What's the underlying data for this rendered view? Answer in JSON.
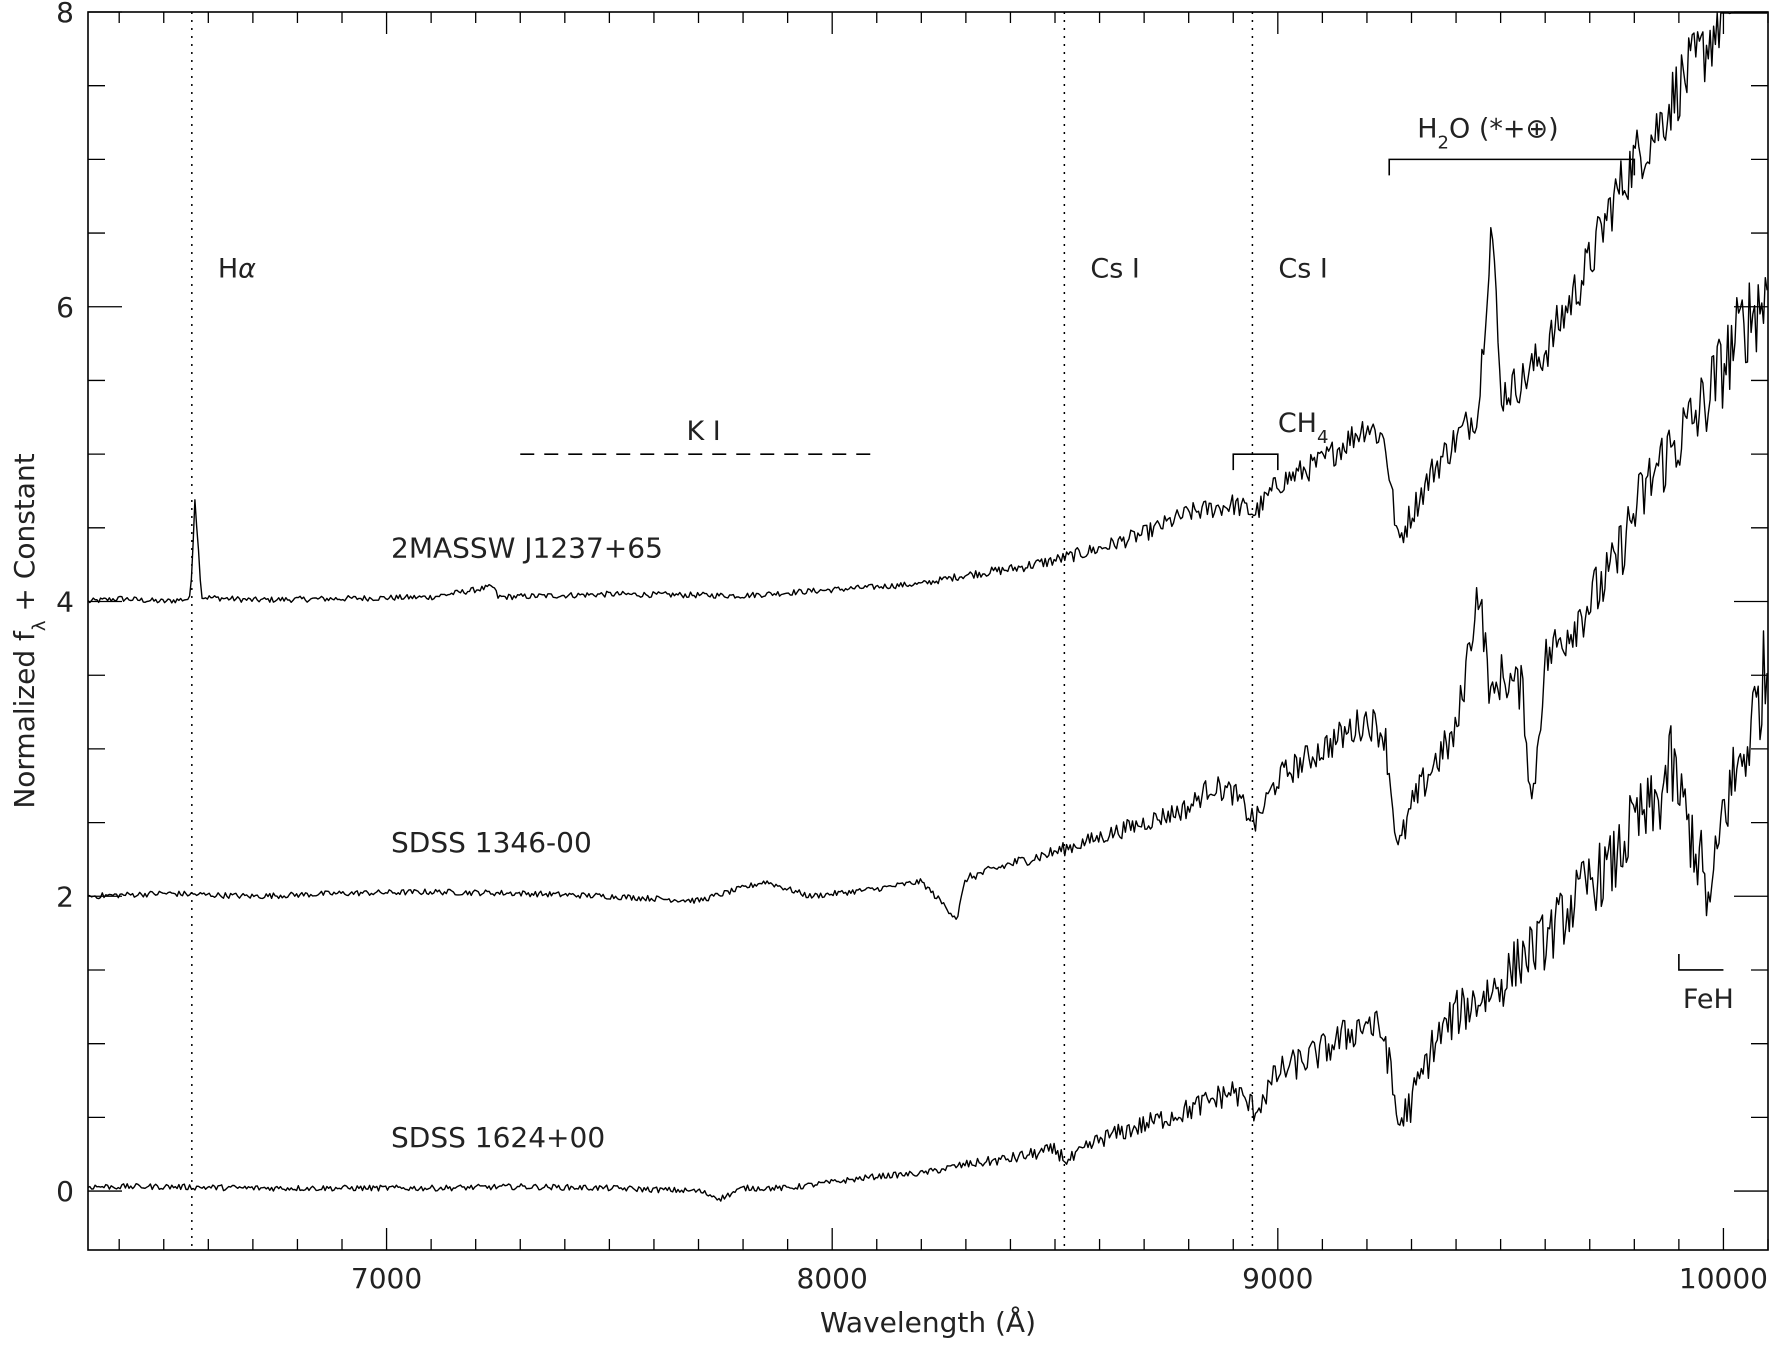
{
  "chart_data": {
    "type": "line",
    "title": "",
    "xlabel_main": "Wavelength (",
    "xlabel_unit": "Å",
    "xlabel_end": ")",
    "ylabel_main": "Normalized f",
    "ylabel_sub": "λ",
    "ylabel_end": " + Constant",
    "xlim": [
      6330,
      10100
    ],
    "ylim": [
      -0.4,
      8
    ],
    "x_ticks": [
      7000,
      8000,
      9000,
      10000
    ],
    "y_ticks": [
      0,
      2,
      4,
      6,
      8
    ],
    "grid": false,
    "series": [
      {
        "name": "2MASSW J1237+65",
        "offset": 4,
        "points": [
          [
            6330,
            0.0
          ],
          [
            6400,
            0.02
          ],
          [
            6500,
            0.0
          ],
          [
            6560,
            0.02
          ],
          [
            6570,
            0.7
          ],
          [
            6585,
            0.03
          ],
          [
            6700,
            0.01
          ],
          [
            6900,
            0.02
          ],
          [
            7100,
            0.03
          ],
          [
            7240,
            0.1
          ],
          [
            7250,
            0.03
          ],
          [
            7500,
            0.05
          ],
          [
            7800,
            0.04
          ],
          [
            8000,
            0.08
          ],
          [
            8200,
            0.12
          ],
          [
            8300,
            0.18
          ],
          [
            8400,
            0.22
          ],
          [
            8500,
            0.28
          ],
          [
            8600,
            0.36
          ],
          [
            8700,
            0.46
          ],
          [
            8800,
            0.6
          ],
          [
            8900,
            0.66
          ],
          [
            8950,
            0.6
          ],
          [
            9000,
            0.8
          ],
          [
            9100,
            0.95
          ],
          [
            9200,
            1.2
          ],
          [
            9240,
            1.1
          ],
          [
            9270,
            0.4
          ],
          [
            9300,
            0.6
          ],
          [
            9350,
            0.9
          ],
          [
            9400,
            1.1
          ],
          [
            9450,
            1.3
          ],
          [
            9480,
            2.6
          ],
          [
            9500,
            1.4
          ],
          [
            9550,
            1.5
          ],
          [
            9600,
            1.7
          ],
          [
            9650,
            2.0
          ],
          [
            9700,
            2.3
          ],
          [
            9750,
            2.7
          ],
          [
            9800,
            3.0
          ],
          [
            9850,
            3.2
          ],
          [
            9900,
            3.5
          ],
          [
            9950,
            3.7
          ],
          [
            10000,
            4.0
          ],
          [
            10050,
            4.3
          ],
          [
            10100,
            4.5
          ]
        ]
      },
      {
        "name": "SDSS 1346-00",
        "offset": 2,
        "points": [
          [
            6330,
            0.0
          ],
          [
            6500,
            0.02
          ],
          [
            6700,
            0.0
          ],
          [
            6900,
            0.02
          ],
          [
            7100,
            0.03
          ],
          [
            7300,
            0.02
          ],
          [
            7500,
            0.0
          ],
          [
            7700,
            -0.03
          ],
          [
            7850,
            0.1
          ],
          [
            7950,
            0.0
          ],
          [
            8100,
            0.05
          ],
          [
            8200,
            0.1
          ],
          [
            8280,
            -0.15
          ],
          [
            8300,
            0.12
          ],
          [
            8400,
            0.22
          ],
          [
            8500,
            0.3
          ],
          [
            8600,
            0.4
          ],
          [
            8700,
            0.5
          ],
          [
            8800,
            0.6
          ],
          [
            8850,
            0.75
          ],
          [
            8900,
            0.7
          ],
          [
            8950,
            0.5
          ],
          [
            9000,
            0.8
          ],
          [
            9100,
            1.0
          ],
          [
            9200,
            1.2
          ],
          [
            9240,
            1.1
          ],
          [
            9270,
            0.3
          ],
          [
            9300,
            0.6
          ],
          [
            9350,
            0.9
          ],
          [
            9400,
            1.1
          ],
          [
            9450,
            2.1
          ],
          [
            9480,
            1.3
          ],
          [
            9500,
            1.5
          ],
          [
            9550,
            1.4
          ],
          [
            9570,
            0.6
          ],
          [
            9600,
            1.6
          ],
          [
            9650,
            1.8
          ],
          [
            9700,
            2.0
          ],
          [
            9750,
            2.2
          ],
          [
            9800,
            2.6
          ],
          [
            9850,
            2.9
          ],
          [
            9900,
            3.1
          ],
          [
            9950,
            3.3
          ],
          [
            10000,
            3.6
          ],
          [
            10050,
            3.9
          ],
          [
            10100,
            4.1
          ]
        ]
      },
      {
        "name": "SDSS 1624+00",
        "offset": 0,
        "points": [
          [
            6330,
            0.03
          ],
          [
            6500,
            0.03
          ],
          [
            6700,
            0.02
          ],
          [
            6900,
            0.02
          ],
          [
            7100,
            0.02
          ],
          [
            7300,
            0.03
          ],
          [
            7500,
            0.02
          ],
          [
            7700,
            0.0
          ],
          [
            7750,
            -0.05
          ],
          [
            7800,
            0.02
          ],
          [
            7900,
            0.02
          ],
          [
            8000,
            0.06
          ],
          [
            8100,
            0.1
          ],
          [
            8200,
            0.12
          ],
          [
            8300,
            0.18
          ],
          [
            8400,
            0.22
          ],
          [
            8500,
            0.28
          ],
          [
            8530,
            0.2
          ],
          [
            8600,
            0.35
          ],
          [
            8700,
            0.45
          ],
          [
            8800,
            0.55
          ],
          [
            8900,
            0.68
          ],
          [
            8950,
            0.55
          ],
          [
            9000,
            0.8
          ],
          [
            9100,
            0.95
          ],
          [
            9150,
            1.05
          ],
          [
            9200,
            1.15
          ],
          [
            9240,
            1.05
          ],
          [
            9270,
            0.45
          ],
          [
            9300,
            0.6
          ],
          [
            9350,
            1.0
          ],
          [
            9400,
            1.2
          ],
          [
            9450,
            1.3
          ],
          [
            9500,
            1.4
          ],
          [
            9550,
            1.6
          ],
          [
            9600,
            1.7
          ],
          [
            9650,
            1.9
          ],
          [
            9700,
            2.1
          ],
          [
            9750,
            2.2
          ],
          [
            9800,
            2.5
          ],
          [
            9850,
            2.6
          ],
          [
            9880,
            2.9
          ],
          [
            9920,
            2.5
          ],
          [
            9950,
            2.2
          ],
          [
            9970,
            1.9
          ],
          [
            10000,
            2.6
          ],
          [
            10050,
            3.0
          ],
          [
            10100,
            3.6
          ]
        ]
      }
    ],
    "lines": [
      {
        "label_main": "H",
        "label_greek": "α",
        "x": 6563,
        "label_y": 6.2
      },
      {
        "label_main": "Cs I",
        "x": 8521,
        "label_y": 6.2
      },
      {
        "label_main": "Cs I",
        "x": 8943,
        "label_y": 6.2
      }
    ],
    "features": [
      {
        "label_main": "K I",
        "x_range": [
          7300,
          8100
        ],
        "y": 5.0,
        "style": "dashed"
      },
      {
        "label_main": "CH",
        "label_sub": "4",
        "x_range": [
          8900,
          9000
        ],
        "y": 5.0,
        "style": "bracket"
      },
      {
        "label_main": "H",
        "label_sub": "2",
        "label_end": "O (*+⊕)",
        "x_range": [
          9250,
          9800
        ],
        "y": 7.0,
        "style": "bracket"
      },
      {
        "label_main": "FeH",
        "x_range": [
          9900,
          10000
        ],
        "y": 1.5,
        "style": "corner"
      }
    ]
  }
}
